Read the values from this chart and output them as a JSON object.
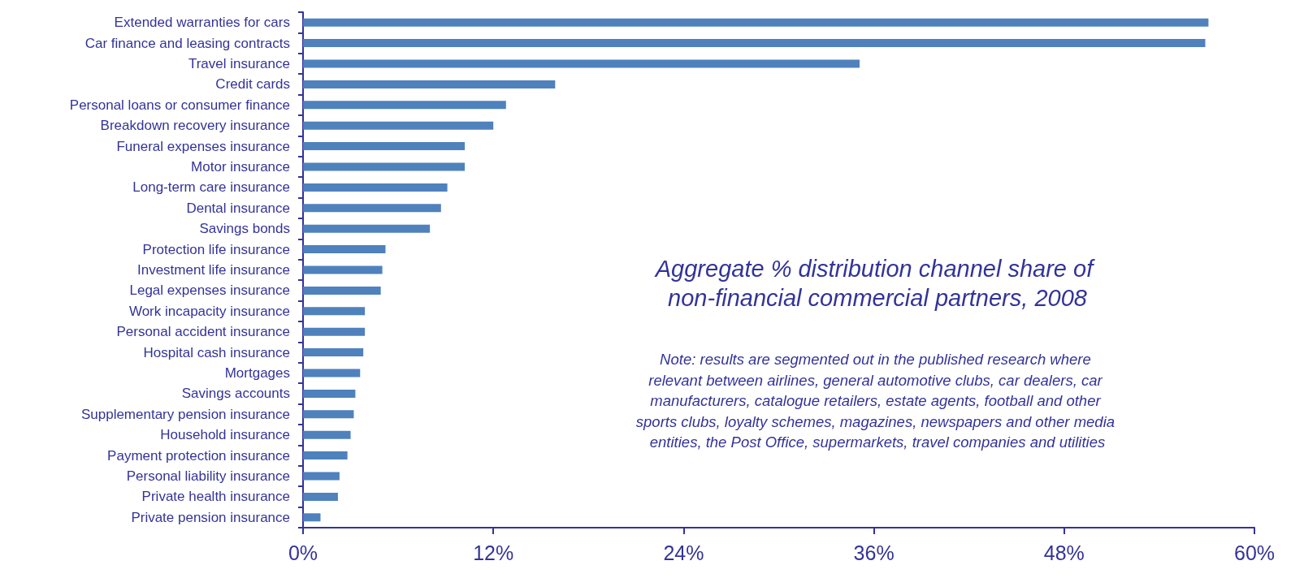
{
  "chart_data": {
    "type": "bar",
    "orientation": "horizontal",
    "title": "Aggregate % distribution channel share of non-financial commercial partners, 2008",
    "annotations": [
      "Note: results are segmented out in the published research where relevant between airlines, general automotive clubs, car dealers, car manufacturers, catalogue retailers, estate agents, football and other sports clubs, loyalty schemes, magazines, newspapers and other media entities, the Post Office, supermarkets, travel companies and utilities"
    ],
    "categories": [
      "Extended warranties for cars",
      "Car finance and leasing contracts",
      "Travel insurance",
      "Credit cards",
      "Personal loans or consumer finance",
      "Breakdown recovery insurance",
      "Funeral expenses insurance",
      "Motor insurance",
      "Long-term care insurance",
      "Dental insurance",
      "Savings bonds",
      "Protection life insurance",
      "Investment life insurance",
      "Legal expenses insurance",
      "Work incapacity insurance",
      "Personal accident insurance",
      "Hospital cash insurance",
      "Mortgages",
      "Savings accounts",
      "Supplementary pension insurance",
      "Household insurance",
      "Payment protection insurance",
      "Personal liability insurance",
      "Private health insurance",
      "Private pension insurance"
    ],
    "values": [
      57.1,
      56.9,
      35.1,
      15.9,
      12.8,
      12.0,
      10.2,
      10.2,
      9.1,
      8.7,
      8.0,
      5.2,
      5.0,
      4.9,
      3.9,
      3.9,
      3.8,
      3.6,
      3.3,
      3.2,
      3.0,
      2.8,
      2.3,
      2.2,
      1.1
    ],
    "color": "#4f81bd",
    "xlim": [
      0,
      60
    ],
    "xticks": [
      {
        "value": 0,
        "label": "0%"
      },
      {
        "value": 12,
        "label": "12%"
      },
      {
        "value": 24,
        "label": "24%"
      },
      {
        "value": 36,
        "label": "36%"
      },
      {
        "value": 48,
        "label": "48%"
      },
      {
        "value": 60,
        "label": "60%"
      }
    ],
    "grid": false
  }
}
